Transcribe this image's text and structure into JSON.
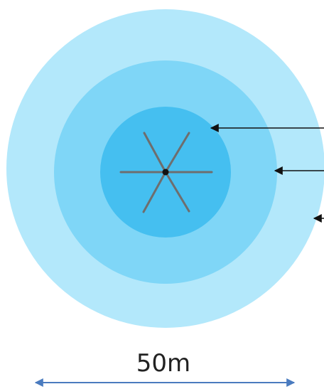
{
  "diagram": {
    "dimension_label": "50m",
    "colors": {
      "outer_ring": "#b3e8fb",
      "middle_ring": "#7fd6f7",
      "inner_circle": "#45bff0",
      "spokes": "#6e6e6e",
      "hub": "#111111",
      "leader_arrows": "#111111",
      "dimension_arrow": "#4a7bbf"
    }
  }
}
